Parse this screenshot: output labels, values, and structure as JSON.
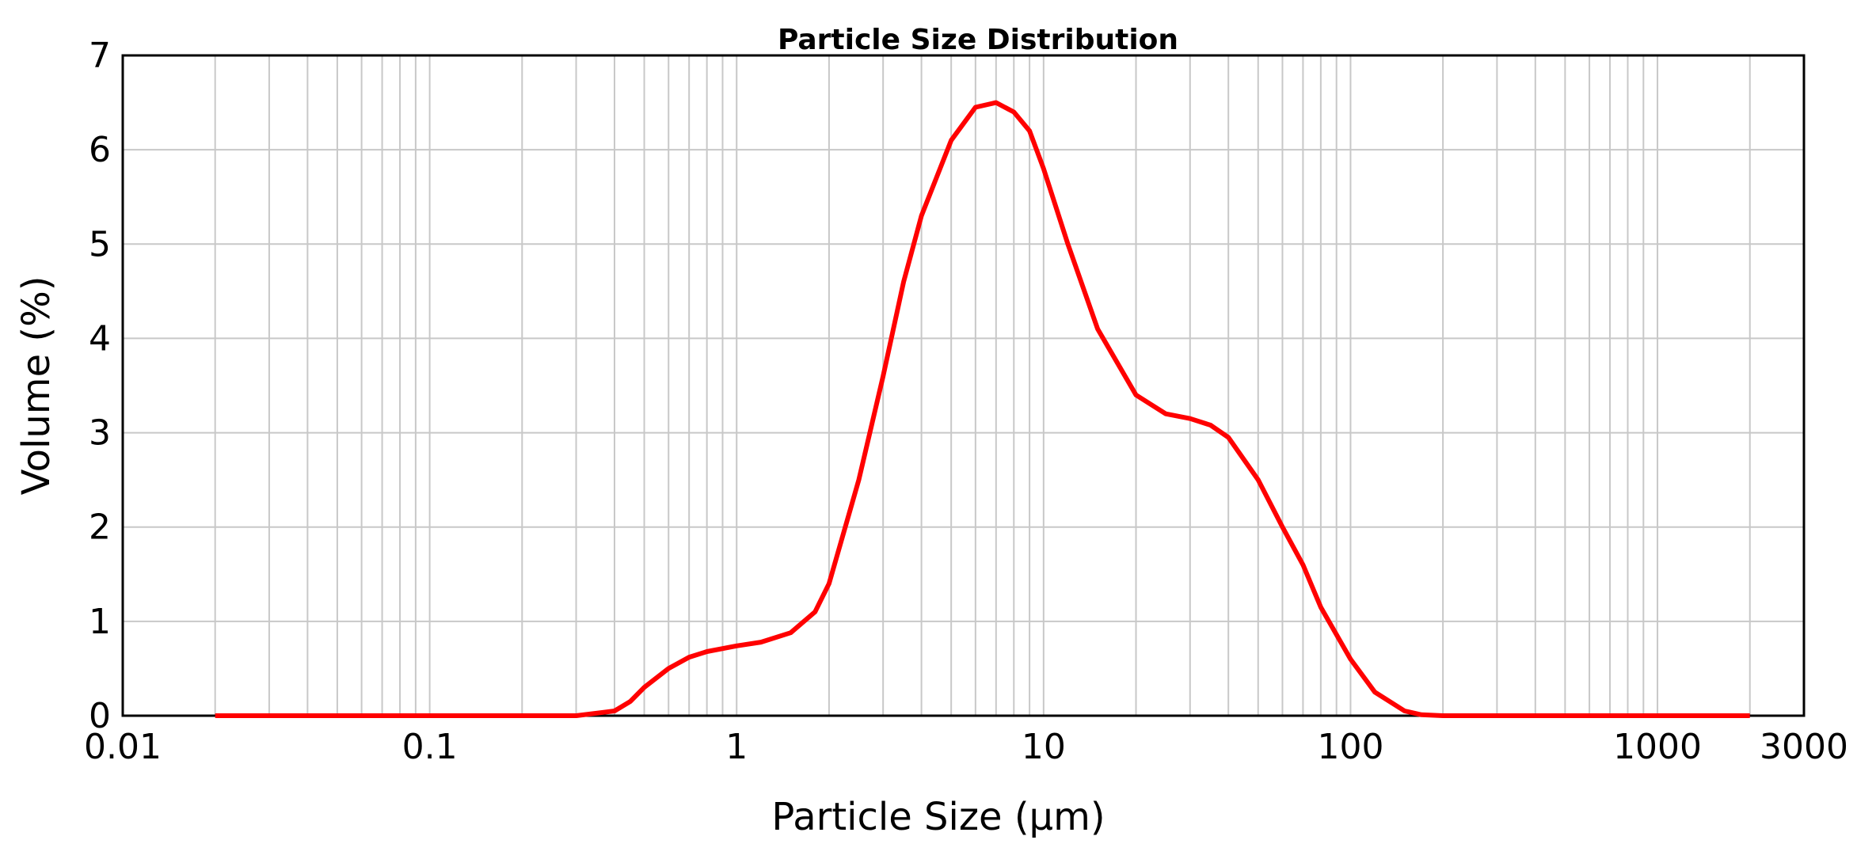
{
  "chart_data": {
    "type": "line",
    "title": "Particle Size Distribution",
    "xlabel": "Particle Size (μm)",
    "ylabel": "Volume (%)",
    "x_scale": "log",
    "xlim": [
      0.01,
      3000
    ],
    "ylim": [
      0,
      7
    ],
    "grid": true,
    "x_tick_labels": [
      "0.01",
      "0.1",
      "1",
      "10",
      "100",
      "1000",
      "3000"
    ],
    "x_tick_values": [
      0.01,
      0.1,
      1,
      10,
      100,
      1000,
      3000
    ],
    "y_tick_values": [
      0,
      1,
      2,
      3,
      4,
      5,
      6,
      7
    ],
    "series": [
      {
        "color": "#ff0000",
        "x": [
          0.02,
          0.1,
          0.3,
          0.4,
          0.45,
          0.5,
          0.6,
          0.7,
          0.8,
          1.0,
          1.2,
          1.5,
          1.8,
          2.0,
          2.5,
          3.0,
          3.5,
          4.0,
          5.0,
          6.0,
          7.0,
          8.0,
          9.0,
          10.0,
          12.0,
          15.0,
          20.0,
          25.0,
          30.0,
          35.0,
          40.0,
          50.0,
          60.0,
          70.0,
          80.0,
          100.0,
          120.0,
          150.0,
          170.0,
          200.0,
          500.0,
          1000.0,
          2000.0
        ],
        "y": [
          0,
          0,
          0,
          0.05,
          0.15,
          0.3,
          0.5,
          0.62,
          0.68,
          0.74,
          0.78,
          0.88,
          1.1,
          1.4,
          2.5,
          3.6,
          4.6,
          5.3,
          6.1,
          6.45,
          6.5,
          6.4,
          6.2,
          5.8,
          5.0,
          4.1,
          3.4,
          3.2,
          3.15,
          3.08,
          2.95,
          2.5,
          2.0,
          1.6,
          1.15,
          0.6,
          0.25,
          0.05,
          0.01,
          0,
          0,
          0,
          0
        ]
      }
    ]
  }
}
